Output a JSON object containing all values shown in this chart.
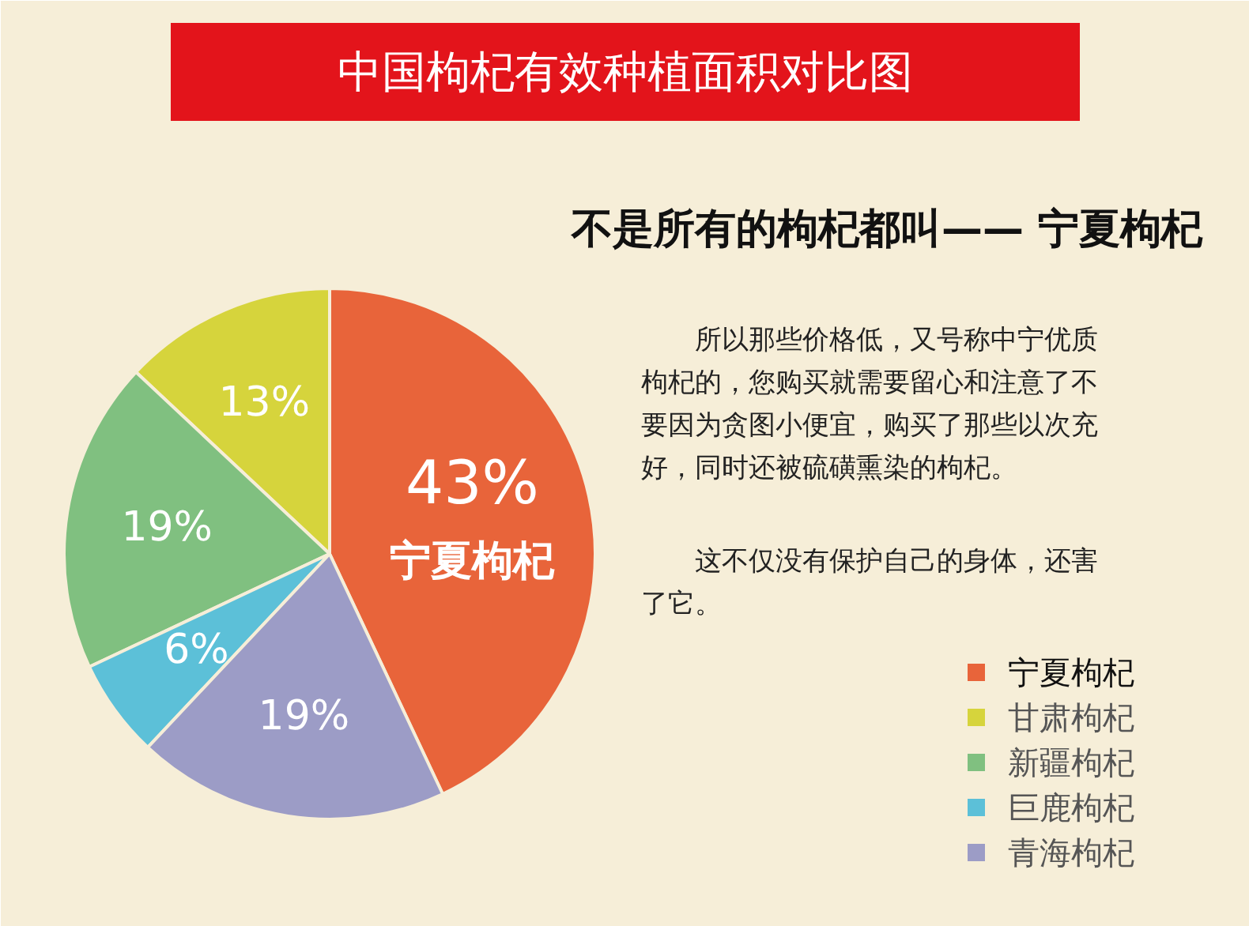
{
  "chart_data": {
    "type": "pie",
    "title": "中国枸杞有效种植面积对比图",
    "subtitle": "不是所有的枸杞都叫—— 宁夏枸杞",
    "categories": [
      "宁夏枸杞",
      "甘肃枸杞",
      "新疆枸杞",
      "巨鹿枸杞",
      "青海枸杞"
    ],
    "values": [
      43,
      13,
      19,
      6,
      19
    ],
    "colors": [
      "#e8643a",
      "#d6d43c",
      "#80c080",
      "#5cc0d8",
      "#9c9cc6"
    ],
    "value_labels": [
      "43%",
      "13%",
      "19%",
      "6%",
      "19%"
    ],
    "legend": "right",
    "annotations": [
      "　　所以那些价格低，又号称中宁优质枸杞的，您购买就需要留心和注意了不要因为贪图小便宜，购买了那些以次充好，同时还被硫磺熏染的枸杞。",
      "　　这不仅没有保护自己的身体，还害了它。",
      {
        "text": "宁夏枸杞",
        "x": "宁夏枸杞"
      }
    ]
  }
}
